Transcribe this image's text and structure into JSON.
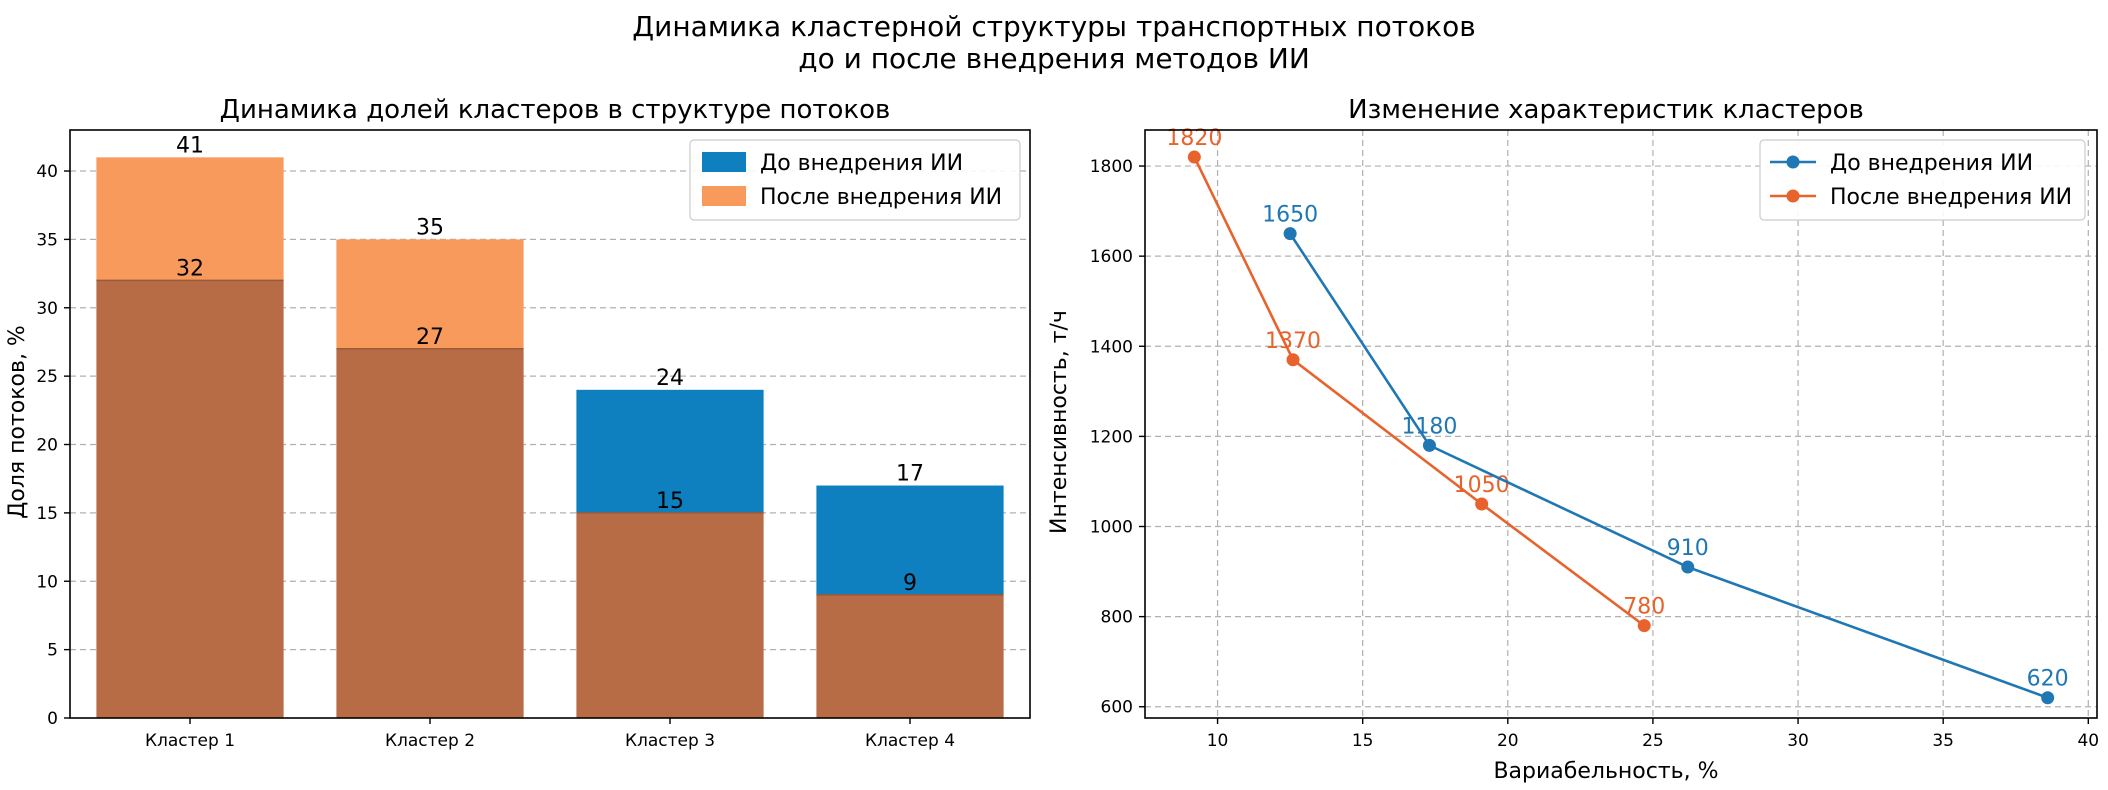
{
  "figure": {
    "title_line1": "Динамика кластерной структуры транспортных потоков",
    "title_line2": "до и после внедрения методов ИИ"
  },
  "colors": {
    "before": "#0e7fbf",
    "after": "#f5853f",
    "after_bar": "#f79a5c",
    "overlap_bar": "#b86c46",
    "after_line": "#e8632c",
    "before_line": "#1f77b4"
  },
  "chart_data": [
    {
      "type": "bar",
      "title": "Динамика долей кластеров в структуре потоков",
      "xlabel": "",
      "ylabel": "Доля потоков, %",
      "categories": [
        "Кластер 1",
        "Кластер 2",
        "Кластер 3",
        "Кластер 4"
      ],
      "series": [
        {
          "name": "До внедрения ИИ",
          "values": [
            32,
            27,
            24,
            17
          ]
        },
        {
          "name": "После внедрения ИИ",
          "values": [
            41,
            35,
            15,
            9
          ]
        }
      ],
      "ylim": [
        0,
        43
      ],
      "yticks": [
        "0",
        "5",
        "10",
        "15",
        "20",
        "25",
        "30",
        "35",
        "40"
      ],
      "grid": "y",
      "legend": "top-right"
    },
    {
      "type": "line",
      "title": "Изменение характеристик кластеров",
      "xlabel": "Вариабельность, %",
      "ylabel": "Интенсивность, т/ч",
      "series": [
        {
          "name": "До внедрения ИИ",
          "points": [
            [
              12.5,
              1650
            ],
            [
              17.3,
              1180
            ],
            [
              26.2,
              910
            ],
            [
              38.6,
              620
            ]
          ],
          "labels": [
            "1650",
            "1180",
            "910",
            "620"
          ]
        },
        {
          "name": "После внедрения ИИ",
          "points": [
            [
              9.2,
              1820
            ],
            [
              12.6,
              1370
            ],
            [
              19.1,
              1050
            ],
            [
              24.7,
              780
            ]
          ],
          "labels": [
            "1820",
            "1370",
            "1050",
            "780"
          ]
        }
      ],
      "xlim": [
        7.5,
        40.3
      ],
      "ylim": [
        575,
        1880
      ],
      "xticks": [
        "10",
        "15",
        "20",
        "25",
        "30",
        "35",
        "40"
      ],
      "yticks": [
        "600",
        "800",
        "1000",
        "1200",
        "1400",
        "1600",
        "1800"
      ],
      "grid": "both",
      "legend": "top-right"
    }
  ]
}
